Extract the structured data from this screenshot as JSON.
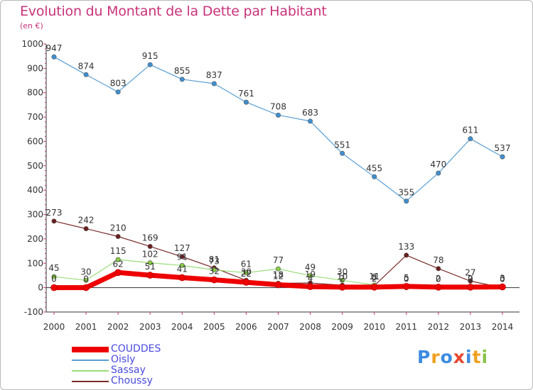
{
  "title": "Evolution du Montant de la Dette par Habitant",
  "subtitle": "(en €)",
  "logo": {
    "text": "Proxiti",
    "letters": [
      {
        "ch": "P",
        "color": "#3d8be0"
      },
      {
        "ch": "r",
        "color": "#f0a020"
      },
      {
        "ch": "o",
        "color": "#3d8be0"
      },
      {
        "ch": "x",
        "color": "#e8462e"
      },
      {
        "ch": "i",
        "color": "#3d8be0"
      },
      {
        "ch": "t",
        "color": "#f0a020"
      },
      {
        "ch": "i",
        "color": "#8bc34a"
      }
    ]
  },
  "chart_data": {
    "type": "line",
    "title": "Evolution du Montant de la Dette par Habitant",
    "subtitle": "(en €)",
    "x": [
      2000,
      2001,
      2002,
      2003,
      2004,
      2005,
      2006,
      2007,
      2008,
      2009,
      2010,
      2011,
      2012,
      2013,
      2014
    ],
    "ylim": [
      -100,
      1000
    ],
    "yticks": [
      -100,
      0,
      100,
      200,
      300,
      400,
      500,
      600,
      700,
      800,
      900,
      1000
    ],
    "grid": false,
    "legend_position": "bottom-left",
    "series": [
      {
        "name": "COUDDES",
        "color": "#ee0000",
        "marker_color": "#ee0000",
        "values": [
          0,
          0,
          62,
          51,
          41,
          32,
          22,
          12,
          4,
          2,
          2,
          5,
          2,
          2,
          3
        ],
        "labels": [
          "0",
          "0",
          "62",
          "51",
          "41",
          "32",
          "22",
          "12",
          "4",
          "2",
          "2",
          "5",
          "2",
          "2",
          "3"
        ]
      },
      {
        "name": "Oisly",
        "color": "#5a9fd4",
        "marker_color": "#3f8fd0",
        "values": [
          947,
          874,
          803,
          915,
          855,
          837,
          761,
          708,
          683,
          551,
          455,
          355,
          470,
          611,
          537
        ],
        "labels": [
          "947",
          "874",
          "803",
          "915",
          "855",
          "837",
          "761",
          "708",
          "683",
          "551",
          "455",
          "355",
          "470",
          "611",
          "537"
        ]
      },
      {
        "name": "Sassay",
        "color": "#99dd77",
        "marker_color": "#88cc44",
        "values": [
          45,
          30,
          115,
          102,
          91,
          73,
          61,
          77,
          49,
          30,
          11,
          0,
          0,
          0,
          0
        ],
        "labels": [
          "45",
          "30",
          "115",
          "102",
          "91",
          "73",
          "61",
          "77",
          "49",
          "30",
          "11",
          "0",
          "0",
          "0",
          "0"
        ]
      },
      {
        "name": "Choussy",
        "color": "#7a2a2a",
        "marker_color": "#6b1f1f",
        "values": [
          273,
          242,
          210,
          169,
          127,
          81,
          30,
          18,
          19,
          10,
          8,
          133,
          78,
          27,
          0
        ],
        "labels": [
          "273",
          "242",
          "210",
          "169",
          "127",
          "81",
          "30",
          "18",
          "19",
          "10",
          "8",
          "133",
          "78",
          "27",
          "0"
        ]
      }
    ]
  }
}
